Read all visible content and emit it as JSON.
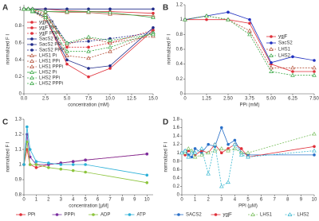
{
  "chart_data": [
    {
      "type": "line",
      "label": "A",
      "xlabel": "concentration (mM)",
      "ylabel": "normalized  F I",
      "legend": "left",
      "grid": false,
      "x": [
        0,
        0.5,
        1,
        2.5,
        5,
        7.5,
        10,
        15
      ],
      "xlim": [
        0,
        15
      ],
      "xticks": [
        {
          "value": 0,
          "label": "0.0"
        },
        {
          "value": 2.5,
          "label": "2.5"
        },
        {
          "value": 5,
          "label": "5.0"
        },
        {
          "value": 7.5,
          "label": "7.5"
        },
        {
          "value": 10,
          "label": "10.0"
        },
        {
          "value": 12.5,
          "label": "12.5"
        },
        {
          "value": 15,
          "label": "15.0"
        }
      ],
      "ylim": [
        0,
        1.05
      ],
      "yticks": [
        0,
        0.2,
        0.4,
        0.6,
        0.8,
        1
      ],
      "series": [
        {
          "name": "ygjF Pi",
          "color": "#e0303a",
          "marker": "circle",
          "dashed": false,
          "values": [
            1,
            1,
            1,
            1,
            0.98,
            0.97,
            0.97,
            0.95
          ]
        },
        {
          "name": "ygjF PPi",
          "color": "#e0303a",
          "marker": "circle",
          "dashed": false,
          "values": [
            1,
            1,
            0.98,
            0.9,
            0.35,
            0.2,
            0.3,
            0.75
          ]
        },
        {
          "name": "ygjF PPPi",
          "color": "#e0303a",
          "marker": "circle",
          "dashed": true,
          "values": [
            1,
            1,
            0.99,
            0.95,
            0.55,
            0.55,
            0.6,
            0.75
          ]
        },
        {
          "name": "SacS2 Pi",
          "color": "#1f2a8a",
          "marker": "circle",
          "dashed": false,
          "values": [
            1,
            1,
            1,
            1,
            1,
            1,
            1,
            1
          ]
        },
        {
          "name": "SacS2 PPi",
          "color": "#1f2a8a",
          "marker": "circle",
          "dashed": false,
          "values": [
            1,
            1,
            0.98,
            0.9,
            0.4,
            0.3,
            0.33,
            0.78
          ]
        },
        {
          "name": "SacS2 PPPi",
          "color": "#1f2a8a",
          "marker": "circle",
          "dashed": true,
          "values": [
            1,
            1,
            1,
            0.97,
            0.6,
            0.62,
            0.65,
            0.72
          ]
        },
        {
          "name": "LHS1 Pi",
          "color": "#b5533c",
          "marker": "triangle",
          "dashed": false,
          "values": [
            1,
            1,
            1,
            0.97,
            0.96,
            0.96,
            0.94,
            0.92
          ]
        },
        {
          "name": "LHS1 PPi",
          "color": "#b5533c",
          "marker": "triangle",
          "dashed": true,
          "values": [
            1,
            1,
            0.97,
            0.88,
            0.45,
            0.42,
            0.5,
            0.72
          ]
        },
        {
          "name": "LHS1 PPPi",
          "color": "#b5533c",
          "marker": "triangle",
          "dashed": true,
          "values": [
            1,
            1,
            0.98,
            0.92,
            0.58,
            0.66,
            0.6,
            0.68
          ]
        },
        {
          "name": "LHS2 Pi",
          "color": "#3aa845",
          "marker": "triangle",
          "dashed": false,
          "values": [
            1,
            1,
            1,
            0.97,
            0.97,
            0.97,
            0.96,
            0.9
          ]
        },
        {
          "name": "LHS2 PPi",
          "color": "#3aa845",
          "marker": "triangle",
          "dashed": true,
          "values": [
            1,
            1,
            0.97,
            0.9,
            0.5,
            0.5,
            0.55,
            0.72
          ]
        },
        {
          "name": "LHS2 PPPi",
          "color": "#3aa845",
          "marker": "triangle",
          "dashed": true,
          "values": [
            1,
            1,
            0.98,
            0.93,
            0.6,
            0.67,
            0.63,
            0.7
          ]
        }
      ]
    },
    {
      "type": "line",
      "label": "B",
      "xlabel": "PPi (mM)",
      "ylabel": "normalized  F I",
      "legend": "right",
      "grid": false,
      "x": [
        0,
        1.25,
        2.5,
        3.75,
        5,
        6.25,
        7.5
      ],
      "xlim": [
        0,
        7.5
      ],
      "xticks": [
        0,
        1.25,
        {
          "value": 2.5,
          "label": "2.50"
        },
        3.75,
        {
          "value": 5,
          "label": "5.00"
        },
        6.25,
        {
          "value": 7.5,
          "label": "7.50"
        }
      ],
      "ylim": [
        0,
        1.2
      ],
      "yticks": [
        0,
        0.2,
        0.4,
        0.6,
        0.8,
        1,
        1.2
      ],
      "series": [
        {
          "name": "ygjF",
          "color": "#e0303a",
          "marker": "circle",
          "dashed": false,
          "values": [
            1,
            1,
            1,
            0.95,
            0.4,
            0.3,
            0.3
          ]
        },
        {
          "name": "SacS2",
          "color": "#2030c0",
          "marker": "circle",
          "dashed": false,
          "values": [
            1,
            1.05,
            1.1,
            1,
            0.42,
            0.5,
            0.45
          ]
        },
        {
          "name": "LHS1",
          "color": "#b5533c",
          "marker": "triangle",
          "dashed": true,
          "values": [
            1,
            1.05,
            1,
            0.85,
            0.35,
            0.35,
            0.35
          ]
        },
        {
          "name": "LHS2",
          "color": "#3aa845",
          "marker": "triangle",
          "dashed": true,
          "values": [
            1,
            1.05,
            1,
            0.8,
            0.3,
            0.25,
            0.25
          ]
        }
      ]
    },
    {
      "type": "line",
      "label": "C",
      "xlabel": "concentration [µM]",
      "ylabel": "normalized  F I",
      "legend": "bottom",
      "grid": false,
      "x": [
        0,
        0.25,
        0.5,
        1,
        2,
        3,
        4,
        5,
        10
      ],
      "xlim": [
        0,
        10.5
      ],
      "xticks": [
        0,
        1,
        2,
        3,
        4,
        5,
        6,
        7,
        8,
        9,
        10
      ],
      "ylim": [
        0.8,
        1.3
      ],
      "yticks": [
        0.8,
        0.9,
        1,
        1.1,
        1.2,
        1.3
      ],
      "series": [
        {
          "name": "PPi",
          "color": "#e0303a",
          "marker": "circle",
          "dashed": false,
          "values": [
            1,
            1.1,
            1,
            0.98,
            1,
            1.01,
            1.02,
            1.03,
            1.07
          ]
        },
        {
          "name": "PPPi",
          "color": "#7a2ea0",
          "marker": "circle",
          "dashed": false,
          "values": [
            1,
            1.2,
            1.05,
            1,
            1,
            1.01,
            1.02,
            1.03,
            1.07
          ]
        },
        {
          "name": "ADP",
          "color": "#8cc43c",
          "marker": "circle",
          "dashed": false,
          "values": [
            1,
            1.15,
            1,
            1,
            0.98,
            0.97,
            0.96,
            0.95,
            0.88
          ]
        },
        {
          "name": "ATP",
          "color": "#2bb0d8",
          "marker": "circle",
          "dashed": false,
          "values": [
            1,
            1.25,
            1.1,
            1.02,
            1.01,
            1,
            1,
            1,
            0.93
          ]
        }
      ]
    },
    {
      "type": "line",
      "label": "D",
      "xlabel": "PPI (µM)",
      "ylabel": "normalized  F I",
      "legend": "bottom",
      "grid": false,
      "x": [
        0,
        0.25,
        0.5,
        0.75,
        1,
        1.5,
        2,
        2.5,
        3,
        3.5,
        4,
        4.5,
        5,
        10
      ],
      "xlim": [
        0,
        10
      ],
      "xticks": [
        0,
        1,
        2,
        3,
        4,
        5,
        6,
        7,
        8,
        9,
        10
      ],
      "ylim": [
        0,
        1.8
      ],
      "yticks": [
        0,
        0.2,
        0.4,
        0.6,
        0.8,
        1,
        1.2,
        1.4,
        1.6,
        1.8
      ],
      "series": [
        {
          "name": "SACS2",
          "color": "#2a70c8",
          "marker": "circle",
          "dashed": false,
          "values": [
            1,
            1.05,
            0.95,
            0.9,
            1.1,
            1,
            1.2,
            1.15,
            1.6,
            1.2,
            1.3,
            1,
            0.95,
            0.95
          ]
        },
        {
          "name": "ygjF",
          "color": "#e0303a",
          "marker": "circle",
          "dashed": false,
          "values": [
            1,
            0.95,
            1.05,
            1,
            0.95,
            1.05,
            1,
            1.2,
            1,
            1.1,
            1.2,
            1.1,
            0.9,
            1.15
          ]
        },
        {
          "name": "LHS1",
          "color": "#7cc060",
          "marker": "triangle",
          "dashed": true,
          "values": [
            1,
            1,
            1.1,
            1.05,
            0.9,
            0.95,
            1,
            1.05,
            1.1,
            1.05,
            1.1,
            1,
            1,
            1.45
          ]
        },
        {
          "name": "LHS2",
          "color": "#3ab8d0",
          "marker": "triangle",
          "dashed": true,
          "values": [
            1,
            1.05,
            0.9,
            1,
            1,
            1.1,
            0.5,
            1.2,
            0.2,
            0.3,
            1.2,
            0.95,
            0.9,
            1.05
          ]
        }
      ]
    }
  ]
}
